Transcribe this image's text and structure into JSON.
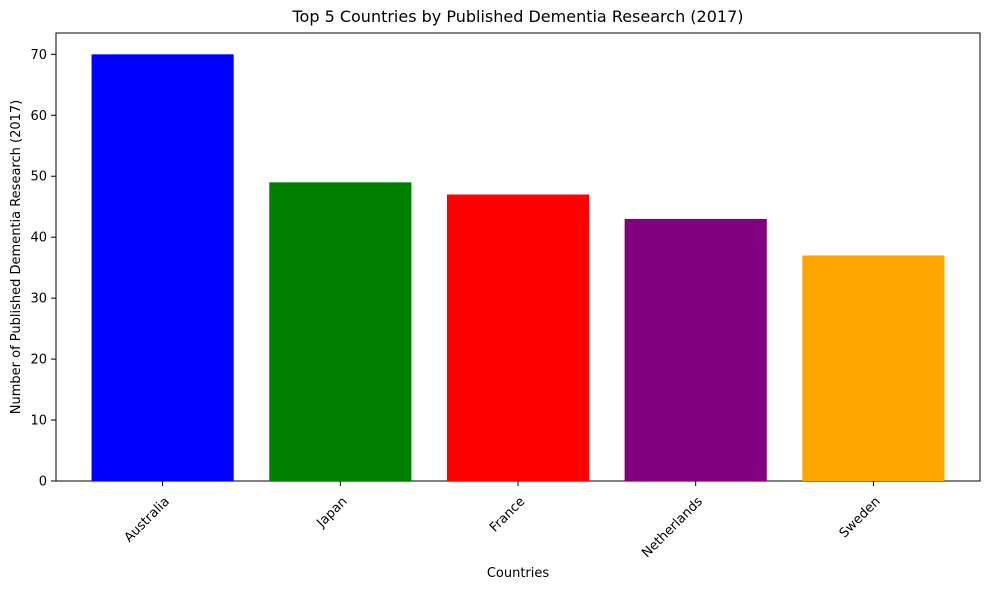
{
  "chart_data": {
    "type": "bar",
    "title": "Top 5 Countries by Published Dementia Research (2017)",
    "xlabel": "Countries",
    "ylabel": "Number of Published Dementia Research (2017)",
    "categories": [
      "Australia",
      "Japan",
      "France",
      "Netherlands",
      "Sweden"
    ],
    "values": [
      70,
      49,
      47,
      43,
      37
    ],
    "colors": [
      "#0000ff",
      "#008000",
      "#ff0000",
      "#800080",
      "#ffa500"
    ],
    "ylim": [
      0,
      73.5
    ],
    "yticks": [
      0,
      10,
      20,
      30,
      40,
      50,
      60,
      70
    ],
    "grid": false,
    "legend": "none"
  }
}
